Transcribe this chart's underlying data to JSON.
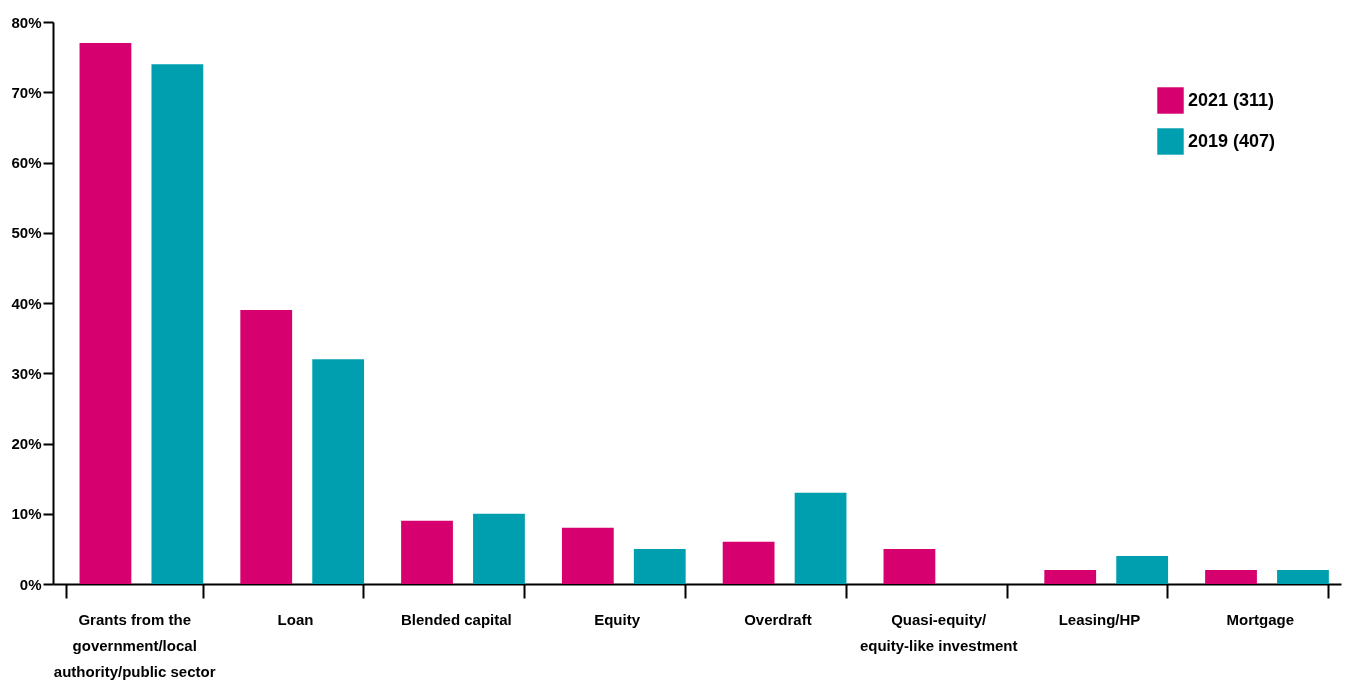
{
  "chart_data": {
    "type": "bar",
    "categories": [
      "Grants from the government/local authority/public sector",
      "Loan",
      "Blended capital",
      "Equity",
      "Overdraft",
      "Quasi-equity/ equity-like investment",
      "Leasing/HP",
      "Mortgage"
    ],
    "series": [
      {
        "name": "2021 (311)",
        "color": "#d6006e",
        "values": [
          77,
          39,
          9,
          8,
          6,
          5,
          2,
          2
        ]
      },
      {
        "name": "2019 (407)",
        "color": "#009fb0",
        "values": [
          74,
          32,
          10,
          5,
          13,
          0,
          4,
          2
        ]
      }
    ],
    "ylim": [
      0,
      80
    ],
    "yticks": [
      {
        "value": 0,
        "label": "0%"
      },
      {
        "value": 10,
        "label": "10%"
      },
      {
        "value": 20,
        "label": "20%"
      },
      {
        "value": 30,
        "label": "30%"
      },
      {
        "value": 40,
        "label": "40%"
      },
      {
        "value": 50,
        "label": "50%"
      },
      {
        "value": 60,
        "label": "60%"
      },
      {
        "value": 70,
        "label": "70%"
      },
      {
        "value": 80,
        "label": "80%"
      }
    ],
    "grid": false,
    "legend": "top right"
  }
}
